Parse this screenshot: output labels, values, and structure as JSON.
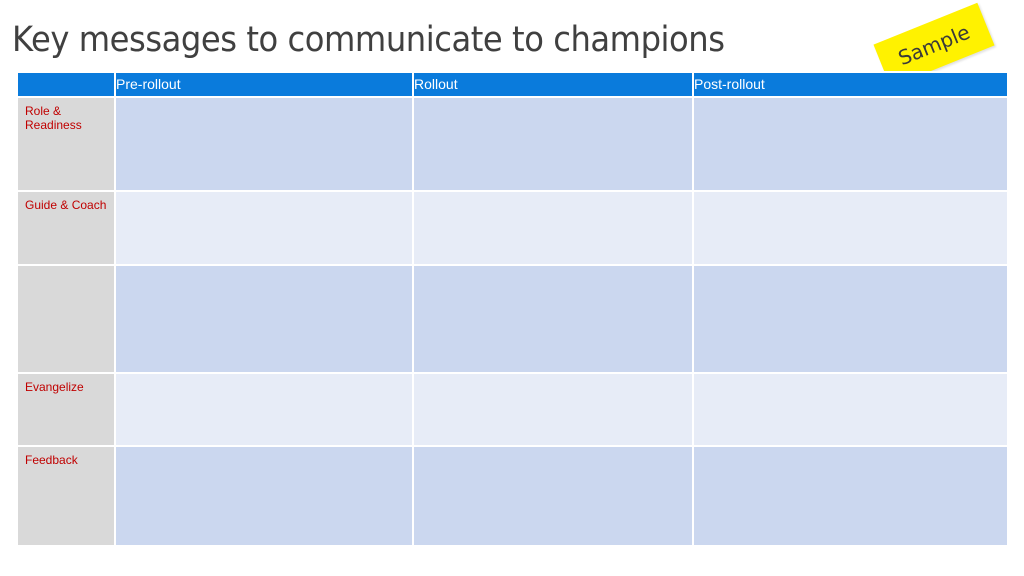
{
  "title": "Key messages to communicate to champions",
  "sticky_note": "Sample",
  "table": {
    "headers": [
      "",
      "Pre-rollout",
      "Rollout",
      "Post-rollout"
    ],
    "rows": [
      {
        "label": "Role & Readiness",
        "cells": [
          "",
          "",
          ""
        ]
      },
      {
        "label": "Guide & Coach",
        "cells": [
          "",
          "",
          ""
        ]
      },
      {
        "label": "",
        "cells": [
          "",
          "",
          ""
        ]
      },
      {
        "label": "Evangelize",
        "cells": [
          "",
          "",
          ""
        ]
      },
      {
        "label": "Feedback",
        "cells": [
          "",
          "",
          ""
        ]
      }
    ]
  },
  "colors": {
    "header_blue": "#0a7bdc",
    "row_label_text": "#c00000",
    "cell_dark": "#cbd7ef",
    "cell_light": "#e7ecf7",
    "sticky_yellow": "#fff200"
  }
}
